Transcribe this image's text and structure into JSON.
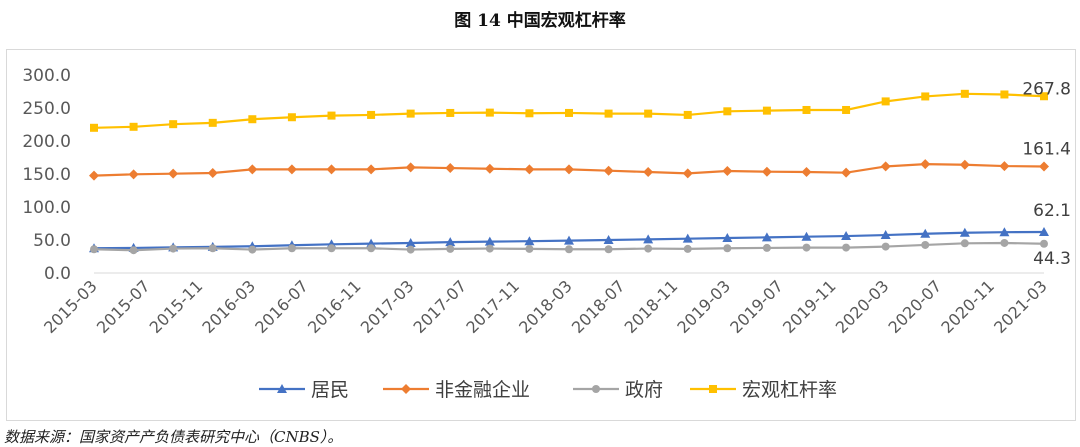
{
  "title": "图 14  中国宏观杠杆率",
  "source_note": "数据来源：国家资产产负债表研究中心（CNBS）。",
  "chart_data": {
    "type": "line",
    "x_tick_labels": [
      "2015-03",
      "2015-07",
      "2015-11",
      "2016-03",
      "2016-07",
      "2016-11",
      "2017-03",
      "2017-07",
      "2017-11",
      "2018-03",
      "2018-07",
      "2018-11",
      "2019-03",
      "2019-07",
      "2019-11",
      "2020-03",
      "2020-07",
      "2020-11",
      "2021-03"
    ],
    "ylim": [
      0,
      300
    ],
    "y_ticks": [
      "0.0",
      "50.0",
      "100.0",
      "150.0",
      "200.0",
      "250.0",
      "300.0"
    ],
    "grid": false,
    "legend_position": "bottom",
    "series": [
      {
        "name": "居民",
        "color": "#4472c4",
        "marker": "triangle",
        "end_label": "62.1",
        "values": [
          37.5,
          38.0,
          38.8,
          39.6,
          40.5,
          42.0,
          43.5,
          44.5,
          45.5,
          46.8,
          47.5,
          48.2,
          49.0,
          50.0,
          51.0,
          52.0,
          53.0,
          54.0,
          55.0,
          56.0,
          57.5,
          59.5,
          61.0,
          61.8,
          62.1
        ]
      },
      {
        "name": "非金融企业",
        "color": "#ed7d31",
        "marker": "diamond",
        "end_label": "161.4",
        "values": [
          147.5,
          149.5,
          150.5,
          151.5,
          157.0,
          157.0,
          157.0,
          157.0,
          160.0,
          159.0,
          158.0,
          157.0,
          157.0,
          155.0,
          153.0,
          151.0,
          154.5,
          153.5,
          153.0,
          152.0,
          161.5,
          165.0,
          164.0,
          162.0,
          161.4
        ]
      },
      {
        "name": "政府",
        "color": "#a5a5a5",
        "marker": "circle",
        "end_label": "44.3",
        "values": [
          36.0,
          34.5,
          37.0,
          37.5,
          35.5,
          37.5,
          37.5,
          37.5,
          35.5,
          36.5,
          37.0,
          36.5,
          36.0,
          36.0,
          37.0,
          36.5,
          37.5,
          38.0,
          38.5,
          38.5,
          40.0,
          42.5,
          45.0,
          45.5,
          44.3
        ]
      },
      {
        "name": "宏观杠杆率",
        "color": "#ffc000",
        "marker": "square",
        "end_label": "267.8",
        "values": [
          220.0,
          221.5,
          225.5,
          227.5,
          233.0,
          236.0,
          238.5,
          239.5,
          241.5,
          242.5,
          243.0,
          242.0,
          242.5,
          241.5,
          241.5,
          239.5,
          245.0,
          246.0,
          247.0,
          247.0,
          260.0,
          267.5,
          271.5,
          270.5,
          267.8
        ]
      }
    ]
  }
}
